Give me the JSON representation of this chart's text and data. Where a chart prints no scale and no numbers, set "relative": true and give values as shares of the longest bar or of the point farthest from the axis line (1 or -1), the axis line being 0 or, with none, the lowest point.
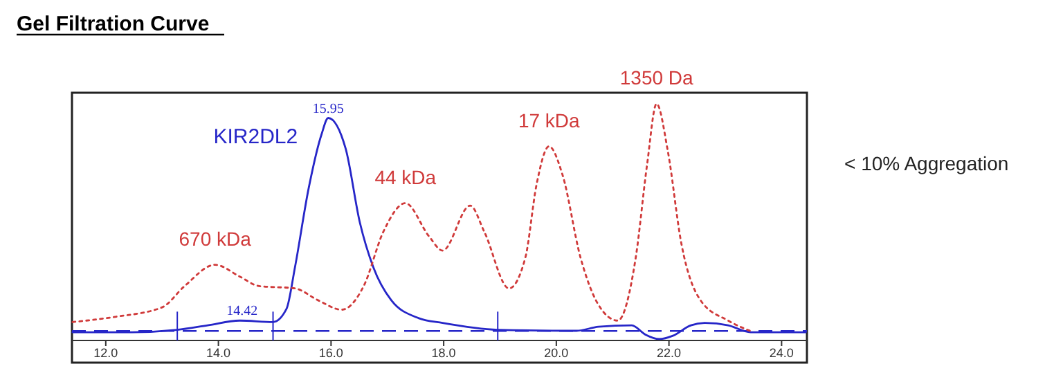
{
  "chart_data": {
    "type": "line",
    "title": "Gel Filtration Curve",
    "relative": true,
    "xlim": [
      11.4,
      24.45
    ],
    "xticks": [
      {
        "value": 12,
        "label": "12.0"
      },
      {
        "value": 14,
        "label": "14.0"
      },
      {
        "value": 16,
        "label": "16.0"
      },
      {
        "value": 18,
        "label": "18.0"
      },
      {
        "value": 20,
        "label": "20.0"
      },
      {
        "value": 22,
        "label": "22.0"
      },
      {
        "value": 24,
        "label": "24.0"
      }
    ],
    "series": [
      {
        "name": "KIR2DL2",
        "color": "#2626c8",
        "line_style": "solid",
        "x": [
          11.41,
          12.47,
          13.27,
          13.81,
          14.38,
          14.97,
          15.21,
          15.36,
          15.6,
          15.83,
          15.95,
          16.26,
          16.51,
          16.75,
          17.07,
          17.56,
          17.98,
          18.96,
          20.36,
          20.75,
          21.34,
          21.58,
          21.83,
          22.07,
          22.39,
          22.64,
          23.05,
          23.45,
          24.43
        ],
        "values": [
          0.035,
          0.035,
          0.045,
          0.064,
          0.084,
          0.078,
          0.134,
          0.31,
          0.64,
          0.87,
          0.94,
          0.81,
          0.5,
          0.31,
          0.17,
          0.094,
          0.074,
          0.045,
          0.041,
          0.058,
          0.064,
          0.025,
          0.006,
          0.02,
          0.064,
          0.074,
          0.064,
          0.035,
          0.035
        ]
      },
      {
        "color": "#d03a3a",
        "line_style": "dotted",
        "x": [
          11.41,
          12.17,
          13.0,
          13.4,
          13.94,
          14.38,
          14.72,
          15.36,
          15.77,
          16.19,
          16.58,
          16.93,
          17.32,
          17.74,
          17.98,
          18.47,
          18.72,
          19.16,
          19.45,
          19.65,
          19.87,
          20.11,
          20.43,
          20.75,
          21.09,
          21.41,
          21.61,
          21.78,
          21.98,
          22.22,
          22.56,
          23.05,
          23.5
        ],
        "values": [
          0.078,
          0.1,
          0.14,
          0.23,
          0.32,
          0.27,
          0.23,
          0.22,
          0.17,
          0.13,
          0.23,
          0.46,
          0.58,
          0.44,
          0.38,
          0.57,
          0.46,
          0.22,
          0.35,
          0.66,
          0.82,
          0.7,
          0.35,
          0.15,
          0.084,
          0.35,
          0.74,
          1.0,
          0.8,
          0.41,
          0.17,
          0.084,
          0.035
        ]
      }
    ],
    "ref_lines": [
      {
        "axis": "y",
        "value": 0.04,
        "color": "#2626c8",
        "line_style": "dashed"
      },
      {
        "axis": "x",
        "value": 13.27,
        "color": "#2626c8"
      },
      {
        "axis": "x",
        "value": 14.97,
        "color": "#2626c8"
      },
      {
        "axis": "x",
        "value": 18.96,
        "color": "#2626c8"
      }
    ],
    "annotations": [
      {
        "text": "15.95",
        "x": 15.95,
        "y": 0.94
      },
      {
        "text": "14.42",
        "x": 14.42,
        "y": 0.084
      },
      {
        "text": "670 kDa",
        "x": 13.94,
        "y": 0.32
      },
      {
        "text": "44 kDa",
        "x": 17.32,
        "y": 0.58
      },
      {
        "text": "17 kDa",
        "x": 19.87,
        "y": 0.82
      },
      {
        "text": "1350 Da",
        "x": 21.78,
        "y": 1.0
      },
      "< 10% Aggregation"
    ]
  }
}
